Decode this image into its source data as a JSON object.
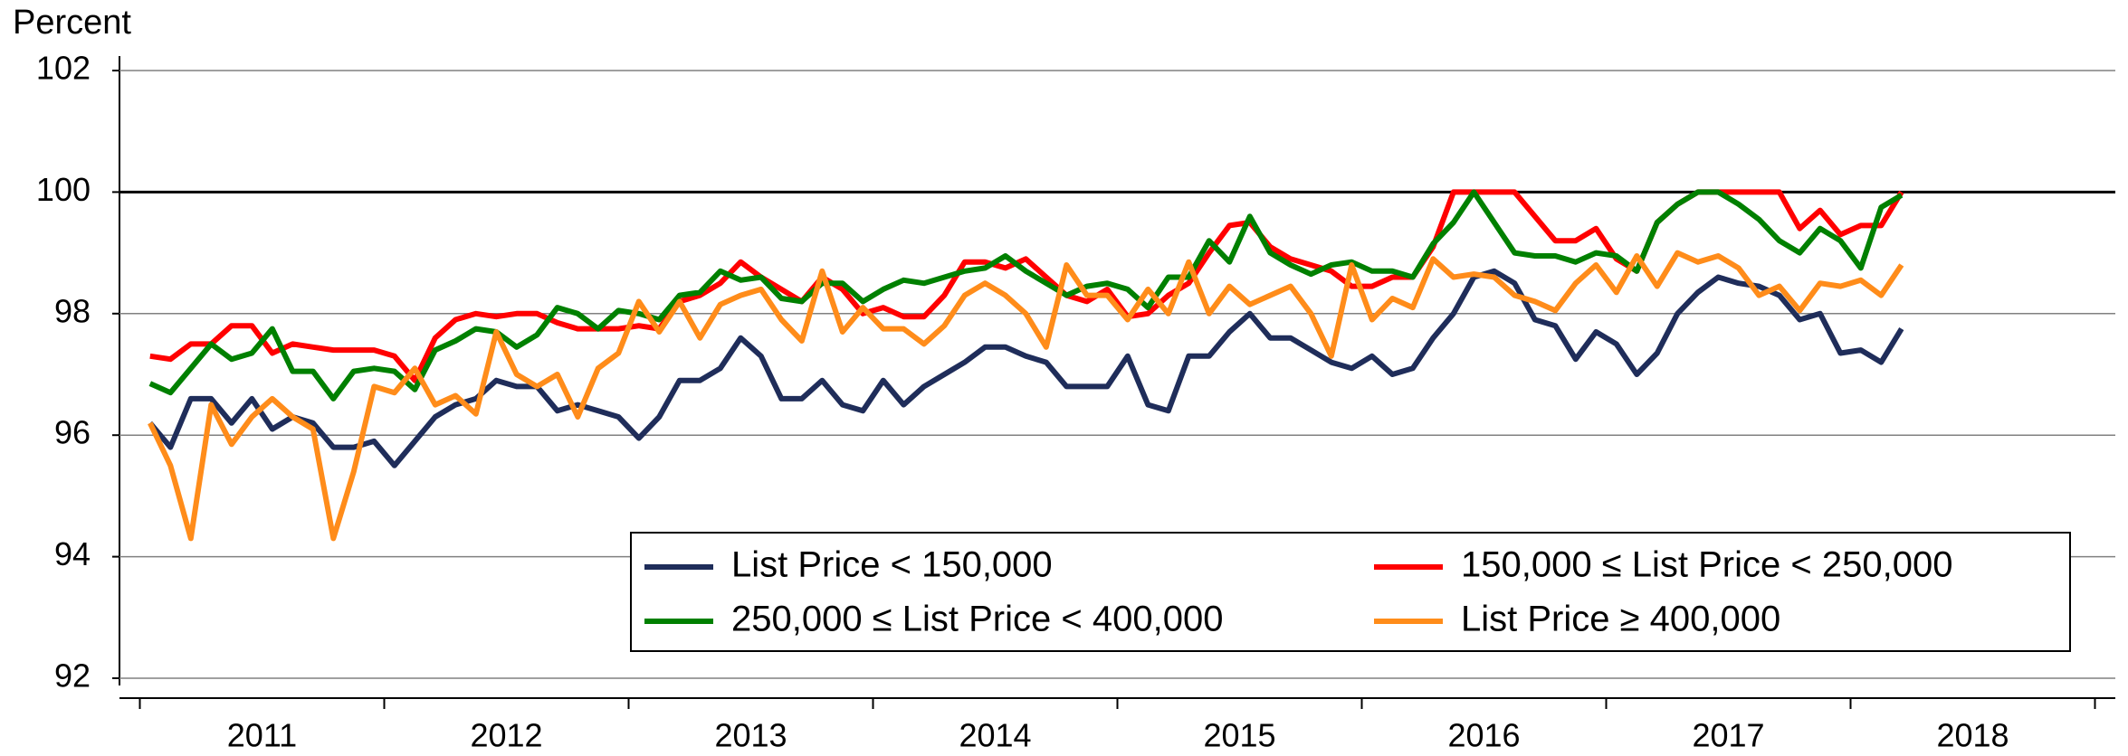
{
  "chart_data": {
    "type": "line",
    "y_label": "Percent",
    "categories": [
      null,
      null,
      null,
      null,
      null,
      null,
      "2011",
      null,
      null,
      null,
      null,
      null,
      null,
      null,
      null,
      null,
      null,
      null,
      "2012",
      null,
      null,
      null,
      null,
      null,
      null,
      null,
      null,
      null,
      null,
      null,
      "2013",
      null,
      null,
      null,
      null,
      null,
      null,
      null,
      null,
      null,
      null,
      null,
      "2014",
      null,
      null,
      null,
      null,
      null,
      null,
      null,
      null,
      null,
      null,
      null,
      "2015",
      null,
      null,
      null,
      null,
      null,
      null,
      null,
      null,
      null,
      null,
      null,
      "2016",
      null,
      null,
      null,
      null,
      null,
      null,
      null,
      null,
      null,
      null,
      null,
      "2017",
      null,
      null,
      null,
      null,
      null,
      null,
      null,
      null,
      null,
      null,
      null,
      "2018",
      null,
      null,
      null,
      null,
      null
    ],
    "ylim": [
      92,
      102
    ],
    "yticks": [
      92,
      94,
      96,
      98,
      100,
      102
    ],
    "grid": true,
    "hline": 100,
    "series": [
      {
        "name": "List Price < 150,000",
        "color": "#1f2d5a",
        "values": [
          96.2,
          95.8,
          96.6,
          96.6,
          96.2,
          96.6,
          96.1,
          96.3,
          96.2,
          95.8,
          95.8,
          95.9,
          95.5,
          95.9,
          96.3,
          96.5,
          96.6,
          96.9,
          96.8,
          96.8,
          96.4,
          96.5,
          96.4,
          96.3,
          95.95,
          96.3,
          96.9,
          96.9,
          97.1,
          97.6,
          97.3,
          96.6,
          96.6,
          96.9,
          96.5,
          96.4,
          96.9,
          96.5,
          96.8,
          97.0,
          97.2,
          97.45,
          97.45,
          97.3,
          97.2,
          96.8,
          96.8,
          96.8,
          97.3,
          96.5,
          96.4,
          97.3,
          97.3,
          97.7,
          98.0,
          97.6,
          97.6,
          97.4,
          97.2,
          97.1,
          97.3,
          97.0,
          97.1,
          97.6,
          98.0,
          98.6,
          98.7,
          98.5,
          97.9,
          97.8,
          97.25,
          97.7,
          97.5,
          97.0,
          97.35,
          98.0,
          98.35,
          98.6,
          98.5,
          98.45,
          98.3,
          97.9,
          98.0,
          97.35,
          97.4,
          97.2,
          97.75,
          null,
          null,
          null,
          null,
          null,
          null,
          null,
          null,
          null
        ]
      },
      {
        "name": "150,000 ≤ List Price < 250,000",
        "color": "#ff0000",
        "values": [
          97.3,
          97.25,
          97.5,
          97.5,
          97.8,
          97.8,
          97.35,
          97.5,
          97.45,
          97.4,
          97.4,
          97.4,
          97.3,
          96.9,
          97.6,
          97.9,
          98.0,
          97.95,
          98.0,
          98.0,
          97.85,
          97.75,
          97.75,
          97.75,
          97.8,
          97.75,
          98.2,
          98.3,
          98.5,
          98.85,
          98.6,
          98.4,
          98.2,
          98.6,
          98.4,
          98.0,
          98.1,
          97.95,
          97.95,
          98.3,
          98.85,
          98.85,
          98.75,
          98.9,
          98.6,
          98.3,
          98.2,
          98.4,
          97.95,
          98.0,
          98.3,
          98.5,
          99.0,
          99.45,
          99.5,
          99.1,
          98.9,
          98.8,
          98.7,
          98.45,
          98.45,
          98.6,
          98.6,
          99.1,
          100,
          100,
          100,
          100,
          99.6,
          99.2,
          99.2,
          99.4,
          98.9,
          98.7,
          99.5,
          99.8,
          100,
          100,
          100,
          100,
          100,
          99.4,
          99.7,
          99.3,
          99.45,
          99.45,
          100,
          null,
          null,
          null,
          null,
          null,
          null,
          null,
          null,
          null
        ]
      },
      {
        "name": "250,000 ≤ List Price < 400,000",
        "color": "#008000",
        "values": [
          96.85,
          96.7,
          97.1,
          97.5,
          97.25,
          97.35,
          97.75,
          97.05,
          97.05,
          96.6,
          97.05,
          97.1,
          97.05,
          96.75,
          97.4,
          97.55,
          97.75,
          97.7,
          97.45,
          97.65,
          98.1,
          98.0,
          97.75,
          98.05,
          98.0,
          97.9,
          98.3,
          98.35,
          98.7,
          98.55,
          98.6,
          98.25,
          98.2,
          98.5,
          98.5,
          98.2,
          98.4,
          98.55,
          98.5,
          98.6,
          98.7,
          98.75,
          98.95,
          98.7,
          98.5,
          98.3,
          98.45,
          98.5,
          98.4,
          98.1,
          98.6,
          98.6,
          99.2,
          98.85,
          99.6,
          99.0,
          98.8,
          98.65,
          98.8,
          98.85,
          98.7,
          98.7,
          98.6,
          99.15,
          99.5,
          100,
          99.5,
          99.0,
          98.95,
          98.95,
          98.85,
          99.0,
          98.95,
          98.7,
          99.5,
          99.8,
          100,
          100,
          99.8,
          99.55,
          99.2,
          99.0,
          99.4,
          99.2,
          98.75,
          99.75,
          99.95,
          null,
          null,
          null,
          null,
          null,
          null,
          null,
          null,
          null
        ]
      },
      {
        "name": "List Price ≥ 400,000",
        "color": "#ff8c1a",
        "values": [
          96.2,
          95.5,
          94.3,
          96.5,
          95.85,
          96.3,
          96.6,
          96.3,
          96.1,
          94.3,
          95.4,
          96.8,
          96.7,
          97.1,
          96.5,
          96.65,
          96.35,
          97.7,
          97.0,
          96.8,
          97.0,
          96.3,
          97.1,
          97.35,
          98.2,
          97.7,
          98.2,
          97.6,
          98.15,
          98.3,
          98.4,
          97.9,
          97.55,
          98.7,
          97.7,
          98.1,
          97.75,
          97.75,
          97.5,
          97.8,
          98.3,
          98.5,
          98.3,
          98.0,
          97.45,
          98.8,
          98.3,
          98.3,
          97.9,
          98.4,
          98.0,
          98.85,
          98.0,
          98.45,
          98.15,
          98.3,
          98.45,
          98.0,
          97.3,
          98.8,
          97.9,
          98.25,
          98.1,
          98.9,
          98.6,
          98.65,
          98.6,
          98.3,
          98.2,
          98.05,
          98.5,
          98.8,
          98.35,
          98.95,
          98.45,
          99.0,
          98.85,
          98.95,
          98.75,
          98.3,
          98.45,
          98.05,
          98.5,
          98.45,
          98.55,
          98.3,
          98.8,
          null,
          null,
          null,
          null,
          null,
          null,
          null,
          null,
          null
        ]
      }
    ]
  }
}
